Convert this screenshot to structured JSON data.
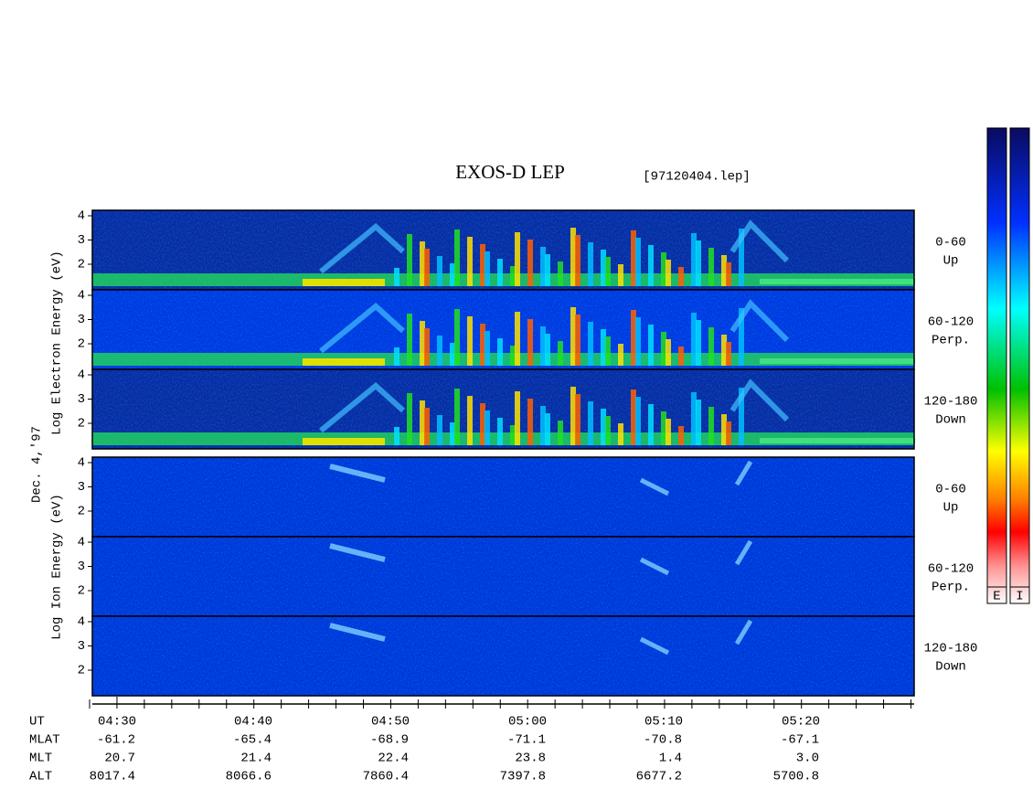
{
  "title": "EXOS-D LEP",
  "file": "[97120404.lep]",
  "date": "Dec. 4,'97",
  "electron": {
    "label": "Log Electron Energy (eV)",
    "panels": [
      {
        "angle": "0-60",
        "direction": "Up",
        "yticks": [
          4,
          3,
          2
        ]
      },
      {
        "angle": "60-120",
        "direction": "Perp.",
        "yticks": [
          4,
          3,
          2
        ]
      },
      {
        "angle": "120-180",
        "direction": "Down",
        "yticks": [
          4,
          3,
          2
        ]
      }
    ]
  },
  "ion": {
    "label": "Log Ion Energy (eV)",
    "panels": [
      {
        "angle": "0-60",
        "direction": "Up",
        "yticks": [
          4,
          3,
          2
        ]
      },
      {
        "angle": "60-120",
        "direction": "Perp.",
        "yticks": [
          4,
          3,
          2
        ]
      },
      {
        "angle": "120-180",
        "direction": "Down",
        "yticks": [
          4,
          3,
          2
        ]
      }
    ]
  },
  "colorbars": [
    "E",
    "I"
  ],
  "axis": {
    "rows": [
      {
        "name": "UT",
        "values": [
          "04:30",
          "04:40",
          "04:50",
          "05:00",
          "05:10",
          "05:20"
        ]
      },
      {
        "name": "MLAT",
        "values": [
          "-61.2",
          "-65.4",
          "-68.9",
          "-71.1",
          "-70.8",
          "-67.1"
        ]
      },
      {
        "name": "MLT",
        "values": [
          "20.7",
          "21.4",
          "22.4",
          "23.8",
          "1.4",
          "3.0"
        ]
      },
      {
        "name": "ALT",
        "values": [
          "8017.4",
          "8066.6",
          "7860.4",
          "7397.8",
          "6677.2",
          "5700.8"
        ]
      }
    ]
  }
}
